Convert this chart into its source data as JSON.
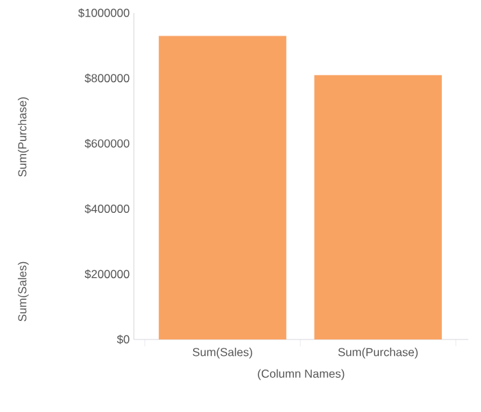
{
  "chart_data": {
    "type": "bar",
    "categories": [
      "Sum(Sales)",
      "Sum(Purchase)"
    ],
    "values": [
      930000,
      810000
    ],
    "color": "#f9a363",
    "xlabel": "(Column Names)",
    "ylabel": "Sum(Sales)",
    "annotations": [
      "Sum(Purchase)"
    ],
    "ylim": [
      0,
      1000000
    ],
    "yticks": [
      {
        "value": 0,
        "label": "$0"
      },
      {
        "value": 200000,
        "label": "$200000"
      },
      {
        "value": 400000,
        "label": "$400000"
      },
      {
        "value": 600000,
        "label": "$600000"
      },
      {
        "value": 800000,
        "label": "$800000"
      },
      {
        "value": 1000000,
        "label": "$1000000"
      }
    ],
    "grid": false
  }
}
